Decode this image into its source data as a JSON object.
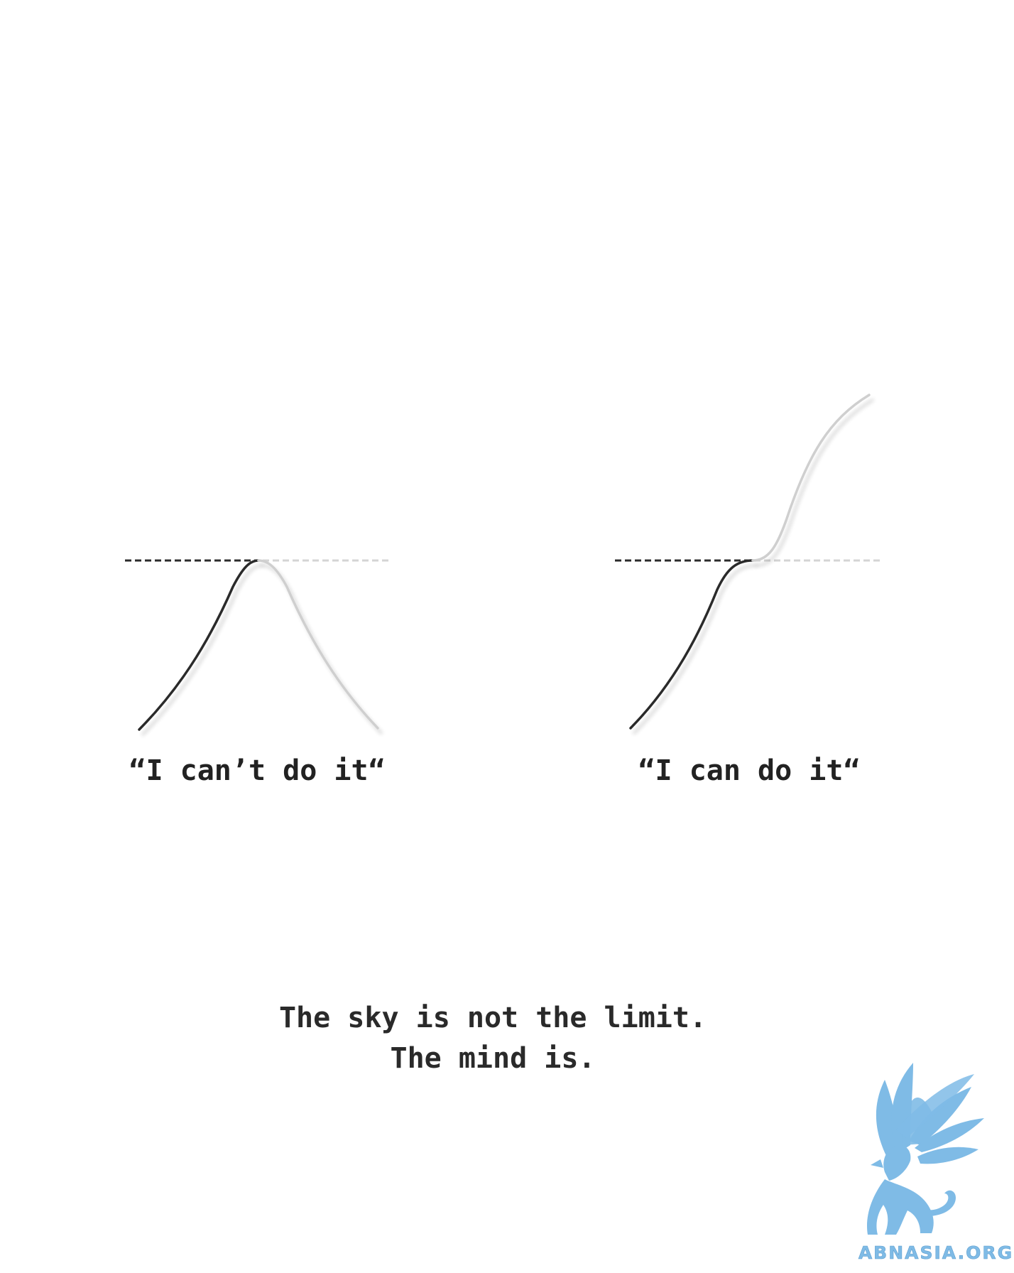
{
  "panels": [
    {
      "caption": "“I can’t do it“"
    },
    {
      "caption": "“I can do it“"
    }
  ],
  "quote": {
    "line1": "The sky is not the limit.",
    "line2": "The mind is."
  },
  "watermark": {
    "text": "ABNASIA.ORG",
    "icon": "griffin-icon"
  },
  "colors": {
    "primary_line": "#2b2b2b",
    "faded_line": "#cfcfcf",
    "dashed_limit_dark": "#2b2b2b",
    "dashed_limit_light": "#d4d4d4",
    "logo_blue": "#7fbbe6"
  }
}
